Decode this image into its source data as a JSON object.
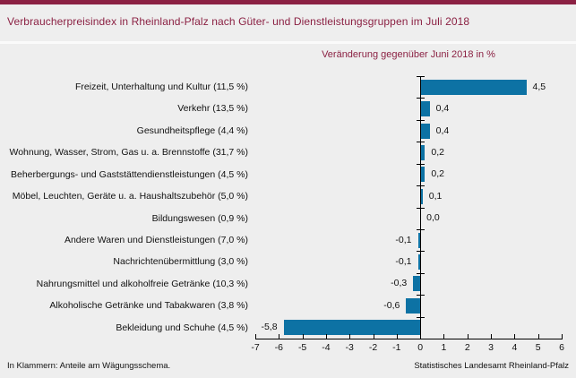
{
  "header": {
    "title": "Verbraucherpreisindex in Rheinland-Pfalz nach Güter- und Dienstleistungsgruppen im Juli 2018"
  },
  "footer": {
    "left": "In Klammern: Anteile am Wägungsschema.",
    "right": "Statistisches Landesamt Rheinland-Pfalz"
  },
  "colors": {
    "accent_maroon": "#8B2143",
    "bar_blue": "#0D72A4",
    "background": "#EEEEEE",
    "axis_black": "#000000"
  },
  "chart_data": {
    "type": "bar",
    "orientation": "horizontal",
    "title": "Verbraucherpreisindex in Rheinland-Pfalz nach Güter- und Dienstleistungsgruppen im Juli 2018",
    "subtitle": "Veränderung gegenüber Juni 2018 in %",
    "categories": [
      "Freizeit, Unterhaltung und Kultur (11,5 %)",
      "Verkehr (13,5 %)",
      "Gesundheitspflege (4,4 %)",
      "Wohnung, Wasser, Strom, Gas u. a. Brennstoffe (31,7 %)",
      "Beherbergungs- und Gaststättendienstleistungen (4,5 %)",
      "Möbel, Leuchten, Geräte u. a. Haushaltszubehör (5,0 %)",
      "Bildungswesen (0,9 %)",
      "Andere Waren und Dienstleistungen (7,0 %)",
      "Nachrichtenübermittlung (3,0 %)",
      "Nahrungsmittel und alkoholfreie Getränke (10,3 %)",
      "Alkoholische Getränke und Tabakwaren (3,8 %)",
      "Bekleidung und Schuhe (4,5 %)"
    ],
    "values": [
      4.5,
      0.4,
      0.4,
      0.2,
      0.2,
      0.1,
      0.0,
      -0.1,
      -0.1,
      -0.3,
      -0.6,
      -5.8
    ],
    "value_labels": [
      "4,5",
      "0,4",
      "0,4",
      "0,2",
      "0,2",
      "0,1",
      "0,0",
      "-0,1",
      "-0,1",
      "-0,3",
      "-0,6",
      "-5,8"
    ],
    "xlabel": "",
    "ylabel": "",
    "xlim": [
      -7,
      6
    ],
    "xticks": [
      -7,
      -6,
      -5,
      -4,
      -3,
      -2,
      -1,
      0,
      1,
      2,
      3,
      4,
      5,
      6
    ],
    "xtick_labels": [
      "-7",
      "-6",
      "-5",
      "-4",
      "-3",
      "-2",
      "-1",
      "0",
      "1",
      "2",
      "3",
      "4",
      "5",
      "6"
    ],
    "grid": false,
    "legend": null
  }
}
